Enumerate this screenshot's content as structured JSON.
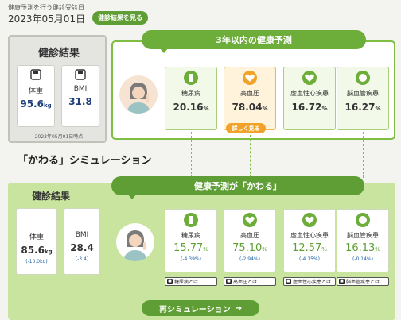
{
  "header": {
    "caption": "健康予測を行う健診受診日",
    "date": "2023年05月01日",
    "results_button": "健診結果を見る"
  },
  "current": {
    "title": "健診結果",
    "weight": {
      "label": "体重",
      "value": "95.6",
      "unit": "kg"
    },
    "bmi": {
      "label": "BMI",
      "value": "31.8"
    },
    "note": "2023年05月01日時点"
  },
  "prediction": {
    "title": "3年以内の健康予測",
    "detail_button": "詳しく見る",
    "items": [
      {
        "label": "糖尿病",
        "value": "20.16",
        "unit": "%"
      },
      {
        "label": "高血圧",
        "value": "78.04",
        "unit": "%"
      },
      {
        "label": "虚血性心疾患",
        "value": "16.72",
        "unit": "%"
      },
      {
        "label": "脳血管疾患",
        "value": "16.27",
        "unit": "%"
      }
    ]
  },
  "simulation": {
    "section_title": "「かわる」シミュレーション",
    "header": "健康予測が「かわる」",
    "results_title": "健診結果",
    "weight": {
      "label": "体重",
      "value": "85.6",
      "unit": "kg",
      "delta": "(-10.0kg)"
    },
    "bmi": {
      "label": "BMI",
      "value": "28.4",
      "delta": "(-3.4)"
    },
    "items": [
      {
        "label": "糖尿病",
        "value": "15.77",
        "unit": "%",
        "delta": "(-4.39%)",
        "about": "糖尿病とは"
      },
      {
        "label": "高血圧",
        "value": "75.10",
        "unit": "%",
        "delta": "(-2.94%)",
        "about": "高血圧とは"
      },
      {
        "label": "虚血性心疾患",
        "value": "12.57",
        "unit": "%",
        "delta": "(-4.15%)",
        "about": "虚血性心疾患とは"
      },
      {
        "label": "脳血管疾患",
        "value": "16.13",
        "unit": "%",
        "delta": "(-0.14%)",
        "about": "脳血管疾患とは"
      }
    ],
    "resim_button": "再シミュレーション",
    "resim_arrow": "→"
  },
  "colors": {
    "green": "#6dad39",
    "light_green": "#c9e49f",
    "orange": "#f0a328",
    "value_blue": "#1e3f7a"
  }
}
